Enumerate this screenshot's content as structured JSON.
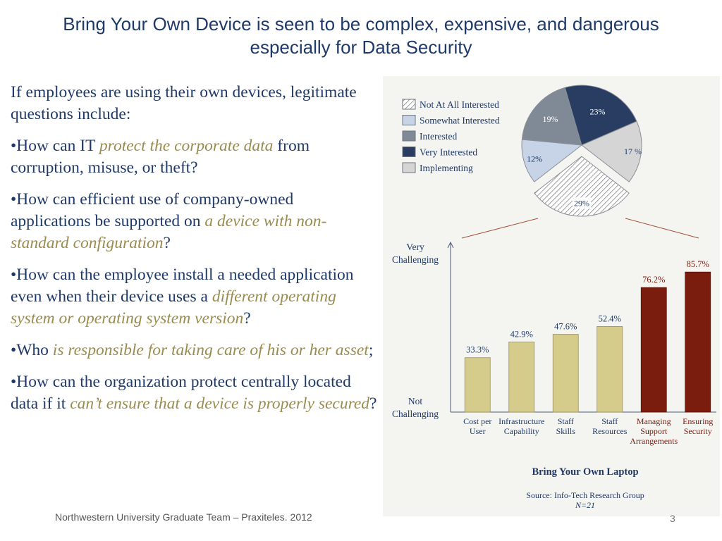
{
  "title": {
    "line1": "Bring Your Own Device is seen to be complex, expensive, and dangerous",
    "line2": "especially for Data Security"
  },
  "body": {
    "intro": "If employees are using their own devices, legitimate questions include:",
    "q1": {
      "pre": "•How can IT ",
      "hl": "protect the corporate data",
      "post": " from corruption, misuse, or theft?"
    },
    "q2": {
      "pre": "•How can efficient use of company-owned applications be supported on ",
      "hl": "a device with non-standard configuration",
      "post": "?"
    },
    "q3": {
      "pre": "•How can the employee install a needed application even when their device uses a ",
      "hl": "different operating system or operating system version",
      "post": "?"
    },
    "q4": {
      "pre": "•Who ",
      "hl": "is responsible for taking care of his or her asset",
      "post": ";"
    },
    "q5": {
      "pre": "•How can the organization protect centrally located data if it ",
      "hl": "can’t ensure that a device is properly secured",
      "post": "?"
    }
  },
  "footer": "Northwestern University Graduate Team – Praxiteles. 2012",
  "page_number": "3",
  "chart_data": [
    {
      "type": "pie",
      "labels": [
        "Not At All Interested",
        "Somewhat Interested",
        "Interested",
        "Very Interested",
        "Implementing"
      ],
      "values": [
        29,
        12,
        19,
        23,
        17
      ],
      "value_labels": [
        "29%",
        "12%",
        "19%",
        "23%",
        "17 %"
      ],
      "exploded": "Not At All Interested",
      "legend_position": "left",
      "colors": {
        "Not At All Interested": "#ffffff",
        "Somewhat Interested": "#c7d3e6",
        "Interested": "#808a97",
        "Very Interested": "#283d61",
        "Implementing": "#d5d5d5"
      }
    },
    {
      "type": "bar",
      "categories": [
        "Cost per User",
        "Infrastructure Capability",
        "Staff Skills",
        "Staff Resources",
        "Managing Support Arrangements",
        "Ensuring Security"
      ],
      "values": [
        33.3,
        42.9,
        47.6,
        52.4,
        76.2,
        85.7
      ],
      "value_labels": [
        "33.3%",
        "42.9%",
        "47.6%",
        "52.4%",
        "76.2%",
        "85.7%"
      ],
      "highlighted": [
        "Managing Support Arrangements",
        "Ensuring Security"
      ],
      "ylabel_top": "Very Challenging",
      "ylabel_bottom": "Not Challenging",
      "ylim": [
        0,
        100
      ],
      "title": "Bring Your Own Laptop",
      "source": "Source: Info-Tech Research Group",
      "n": "N=21",
      "colors": {
        "bar": "#d5cc8c",
        "highlight": "#7a1d0f",
        "label": "#1f3a68",
        "highlight_label": "#7a1d0f"
      }
    }
  ]
}
